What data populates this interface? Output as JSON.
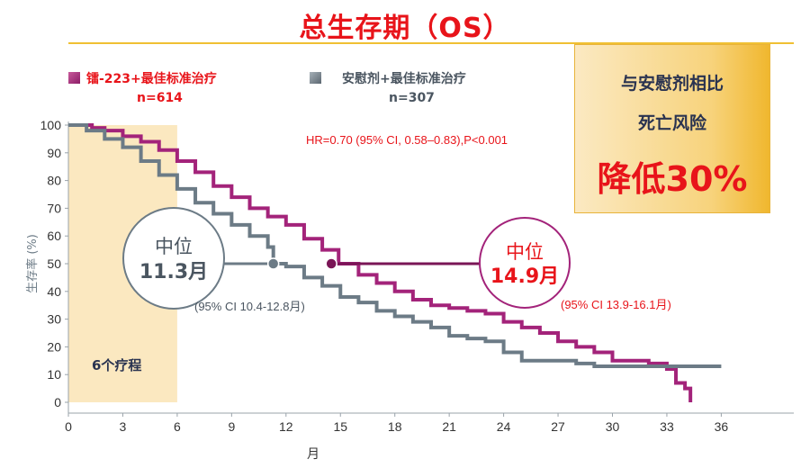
{
  "title": "总生存期（OS）",
  "legend": [
    {
      "name": "镭-223+最佳标准治疗",
      "n": "n=614",
      "color": "#a3237a",
      "text_color": "#e8141a"
    },
    {
      "name": "安慰剂+最佳标准治疗",
      "n": "n=307",
      "color": "#6c7b86",
      "text_color": "#4a5560"
    }
  ],
  "callout": {
    "line1": "与安慰剂相比",
    "line2": "死亡风险",
    "line3": "降低30%"
  },
  "hr_text": "HR=0.70 (95% CI, 0.58–0.83),P<0.001",
  "median_labels": {
    "placebo": {
      "l1": "中位",
      "l2": "11.3月",
      "ci": "(95% CI 10.4-12.8月)",
      "x": 11.3,
      "y": 50
    },
    "radium": {
      "l1": "中位",
      "l2": "14.9月",
      "ci": "(95% CI 13.9-16.1月)",
      "x": 14.5,
      "y": 50
    }
  },
  "course_label": "6个疗程",
  "chart_data": {
    "type": "line",
    "xlabel": "月",
    "ylabel": "生存率 (%)",
    "xlim": [
      0,
      40
    ],
    "ylim": [
      0,
      100
    ],
    "xticks": [
      0,
      3,
      6,
      9,
      12,
      15,
      18,
      21,
      24,
      27,
      30,
      33,
      36
    ],
    "yticks": [
      0,
      10,
      20,
      30,
      40,
      50,
      60,
      70,
      80,
      90,
      100
    ],
    "shaded_region": [
      0,
      6
    ],
    "series": [
      {
        "name": "镭-223+最佳标准治疗",
        "color": "#a3237a",
        "points": [
          [
            0,
            100
          ],
          [
            1.3,
            99
          ],
          [
            2,
            98
          ],
          [
            3,
            96
          ],
          [
            4,
            94
          ],
          [
            5,
            91
          ],
          [
            6,
            87
          ],
          [
            7,
            83
          ],
          [
            8,
            78
          ],
          [
            9,
            74
          ],
          [
            10,
            70
          ],
          [
            11,
            67
          ],
          [
            12,
            64
          ],
          [
            13,
            59
          ],
          [
            14,
            55
          ],
          [
            14.9,
            50
          ],
          [
            16,
            46
          ],
          [
            17,
            43
          ],
          [
            18,
            40
          ],
          [
            19,
            37
          ],
          [
            20,
            35
          ],
          [
            21,
            34
          ],
          [
            22,
            33
          ],
          [
            23,
            32
          ],
          [
            24,
            29
          ],
          [
            25,
            27
          ],
          [
            26,
            25
          ],
          [
            27,
            22
          ],
          [
            28,
            20
          ],
          [
            29,
            18
          ],
          [
            30,
            15
          ],
          [
            31,
            15
          ],
          [
            32,
            14
          ],
          [
            33,
            12
          ],
          [
            33.5,
            7
          ],
          [
            34,
            5
          ],
          [
            34.3,
            0
          ]
        ]
      },
      {
        "name": "安慰剂+最佳标准治疗",
        "color": "#6c7b86",
        "points": [
          [
            0,
            100
          ],
          [
            1,
            98
          ],
          [
            2,
            95
          ],
          [
            3,
            92
          ],
          [
            4,
            87
          ],
          [
            5,
            82
          ],
          [
            6,
            77
          ],
          [
            7,
            72
          ],
          [
            8,
            68
          ],
          [
            9,
            64
          ],
          [
            10,
            60
          ],
          [
            11,
            56
          ],
          [
            11.3,
            50
          ],
          [
            12,
            49
          ],
          [
            13,
            45
          ],
          [
            14,
            42
          ],
          [
            15,
            38
          ],
          [
            16,
            36
          ],
          [
            17,
            33
          ],
          [
            18,
            31
          ],
          [
            19,
            29
          ],
          [
            20,
            27
          ],
          [
            21,
            24
          ],
          [
            22,
            23
          ],
          [
            23,
            22
          ],
          [
            24,
            18
          ],
          [
            25,
            15
          ],
          [
            26,
            15
          ],
          [
            27,
            15
          ],
          [
            28,
            14
          ],
          [
            29,
            13
          ],
          [
            30,
            13
          ],
          [
            33,
            13
          ],
          [
            36,
            13
          ]
        ]
      }
    ]
  }
}
